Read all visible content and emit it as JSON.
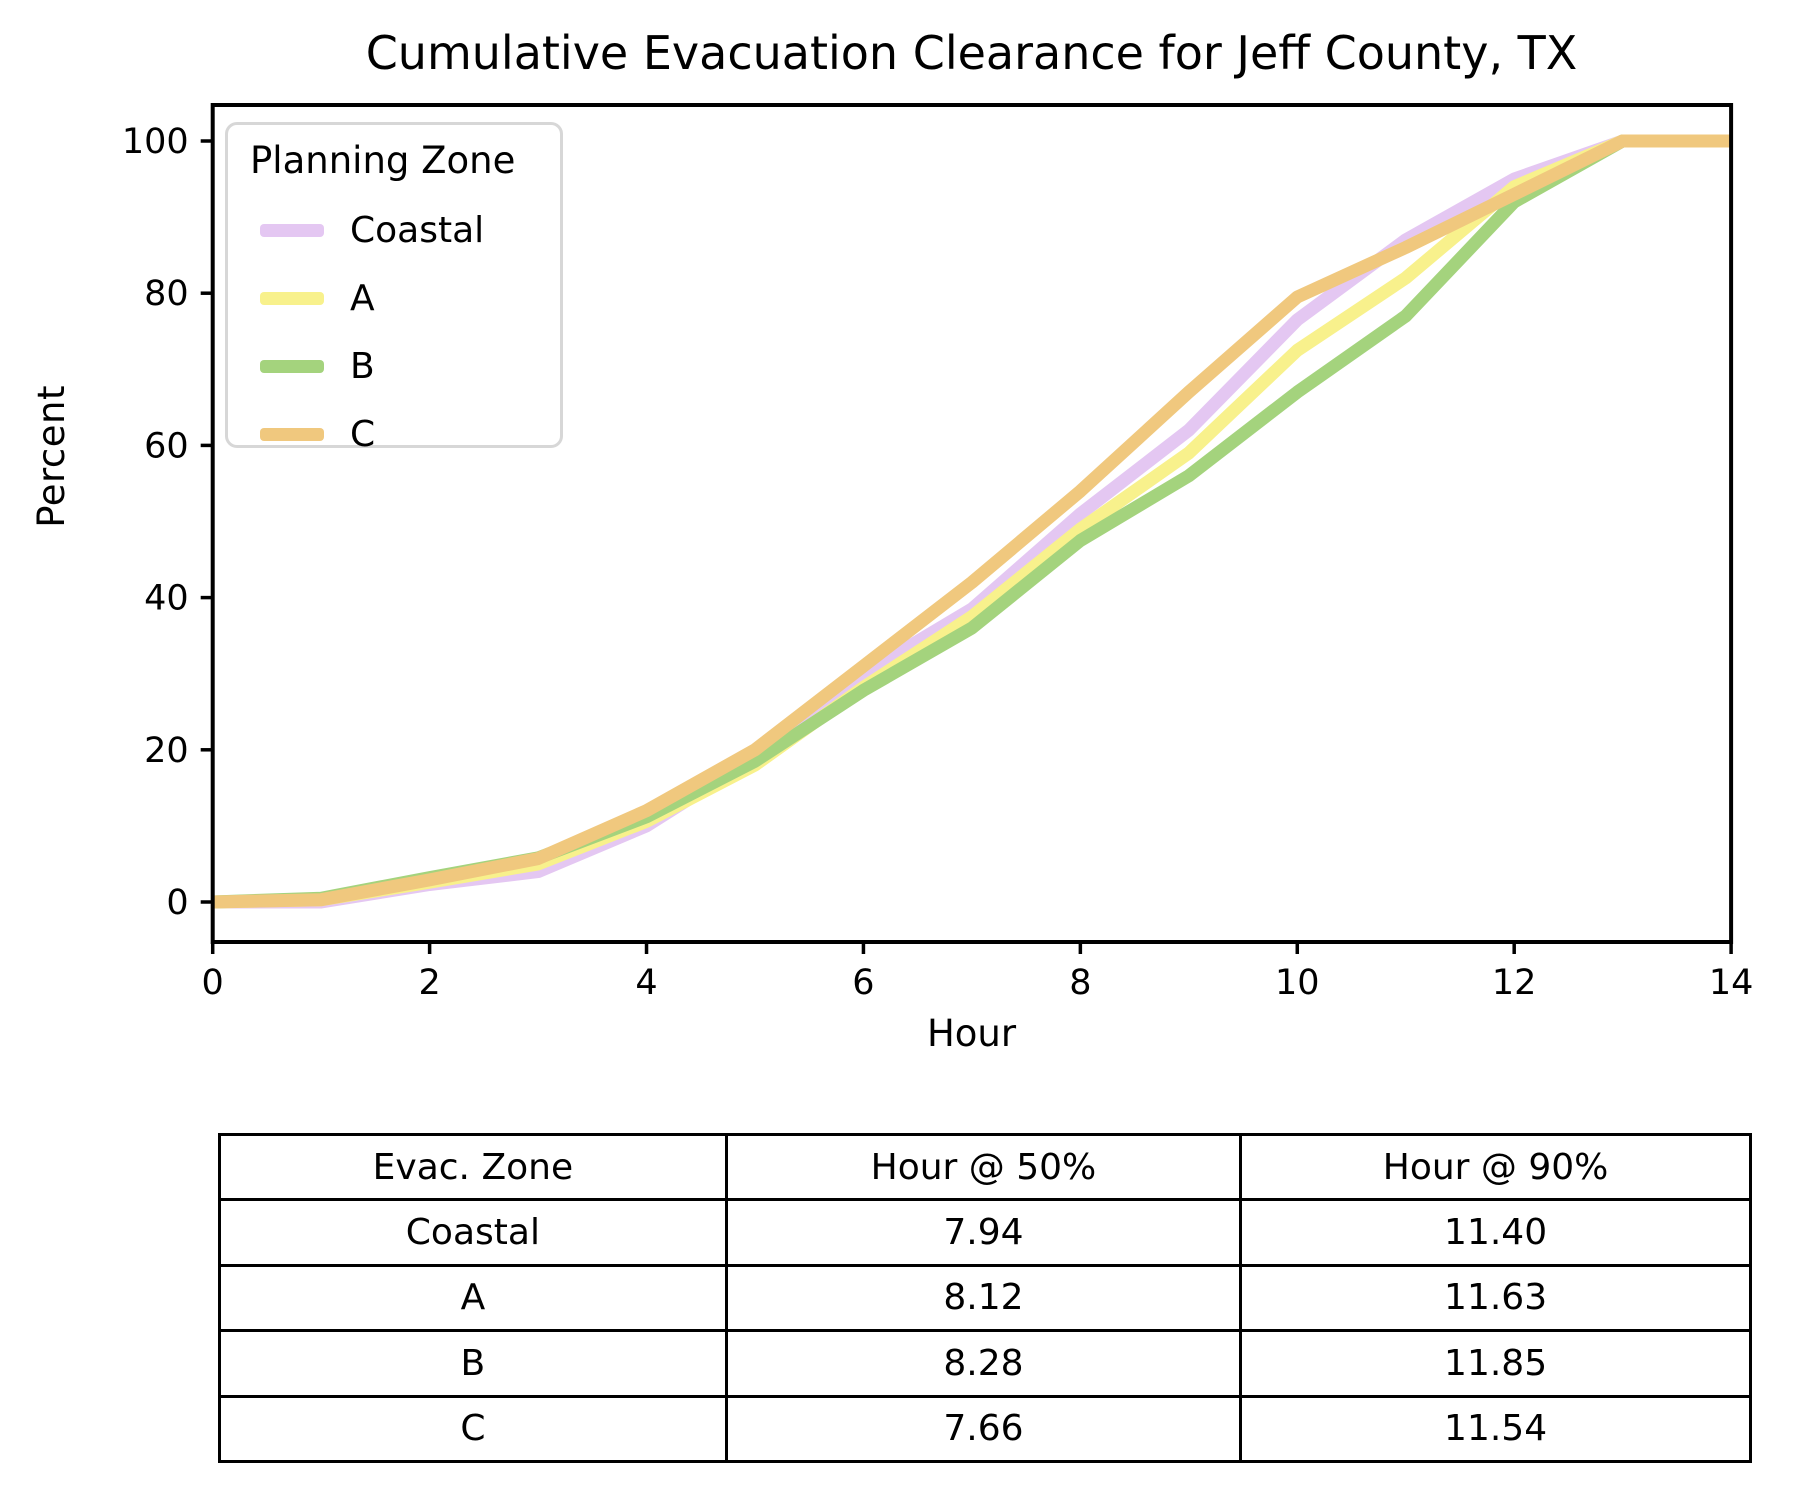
{
  "title": "Cumulative Evacuation Clearance for Jeff County, TX",
  "chart_data": {
    "type": "line",
    "title": "Cumulative Evacuation Clearance for Jeff County, TX",
    "xlabel": "Hour",
    "ylabel": "Percent",
    "xlim": [
      0,
      14
    ],
    "ylim": [
      -5.3,
      104.7
    ],
    "xticks": [
      "0",
      "2",
      "4",
      "6",
      "8",
      "10",
      "12",
      "14"
    ],
    "xtick_values": [
      0,
      2,
      4,
      6,
      8,
      10,
      12,
      14
    ],
    "yticks": [
      "0",
      "20",
      "40",
      "60",
      "80",
      "100"
    ],
    "ytick_values": [
      0,
      20,
      40,
      60,
      80,
      100
    ],
    "grid": false,
    "legend_title": "Planning Zone",
    "legend_position": "upper left",
    "x": [
      0,
      1,
      2,
      3,
      4,
      5,
      6,
      7,
      8,
      9,
      10,
      11,
      12,
      13,
      14
    ],
    "series": [
      {
        "name": "Coastal",
        "color": "#e4c7f2",
        "values": [
          0,
          0,
          2.3,
          4.0,
          10.0,
          19.0,
          30.0,
          38.5,
          51.0,
          62.0,
          76.5,
          87.0,
          95.0,
          100,
          100
        ]
      },
      {
        "name": "A",
        "color": "#f8f18c",
        "values": [
          0,
          0.3,
          2.6,
          5.0,
          10.6,
          18.0,
          28.2,
          37.5,
          49.0,
          59.0,
          72.5,
          82.0,
          94.0,
          100,
          100
        ]
      },
      {
        "name": "B",
        "color": "#a4d37d",
        "values": [
          0,
          0.5,
          3.2,
          5.8,
          11.2,
          18.5,
          27.8,
          36.0,
          47.5,
          56.0,
          67.0,
          77.0,
          92.0,
          100,
          100
        ]
      },
      {
        "name": "C",
        "color": "#f0c87e",
        "values": [
          0,
          0.3,
          2.9,
          5.7,
          12.0,
          20.0,
          31.0,
          42.0,
          54.0,
          67.0,
          79.5,
          86.0,
          93.0,
          100,
          100
        ]
      }
    ]
  },
  "table": {
    "headers": [
      "Evac. Zone",
      "Hour @ 50%",
      "Hour @ 90%"
    ],
    "rows": [
      {
        "cells": [
          "Coastal",
          "7.94",
          "11.40"
        ]
      },
      {
        "cells": [
          "A",
          "8.12",
          "11.63"
        ]
      },
      {
        "cells": [
          "B",
          "8.28",
          "11.85"
        ]
      },
      {
        "cells": [
          "C",
          "7.66",
          "11.54"
        ]
      }
    ]
  }
}
